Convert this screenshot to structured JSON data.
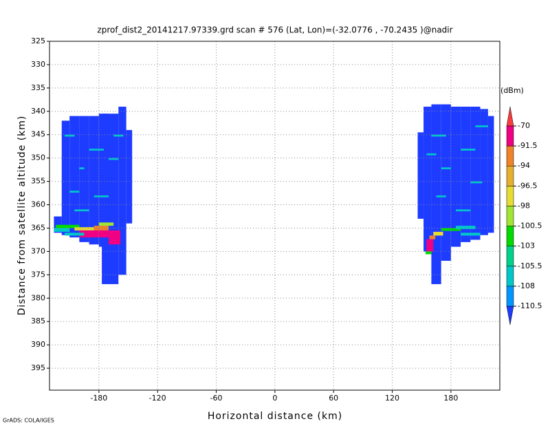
{
  "chart_data": {
    "type": "heatmap",
    "title": "zprof_dist2_20141217.97339.grd  scan # 576  (Lat, Lon)=(-32.0776 , -70.2435 )@nadir",
    "x_label": "Horizontal distance (km)",
    "y_label": "Distance from satellite altitude (km)",
    "footer": "GrADS: COLA/IGES",
    "xlim": [
      -230.5,
      230
    ],
    "ylim": [
      325,
      399.7
    ],
    "y_inverted": true,
    "xticks": [
      -180,
      -120,
      -60,
      0,
      60,
      120,
      180
    ],
    "yticks": [
      325,
      330,
      335,
      340,
      345,
      350,
      355,
      360,
      365,
      370,
      375,
      380,
      385,
      390,
      395
    ],
    "grid": true,
    "colorbar": {
      "unit": "(dBm)",
      "levels": [
        -110.5,
        -108,
        -105.5,
        -103,
        -100.5,
        -98,
        -96.5,
        -94,
        -91.5,
        -70
      ],
      "colors": [
        "#1e3cff",
        "#0096ff",
        "#00c8c8",
        "#00d28c",
        "#00dc00",
        "#a0e632",
        "#e6dc32",
        "#e6af2d",
        "#f08228",
        "#f00082",
        "#fa3c3c"
      ]
    },
    "cells": [
      {
        "x": [
          -226,
          -218
        ],
        "y": [
          362.5,
          366
        ],
        "value": -112
      },
      {
        "x": [
          -218,
          -210
        ],
        "y": [
          342,
          366.5
        ],
        "value": -112
      },
      {
        "x": [
          -210,
          -200
        ],
        "y": [
          341,
          367
        ],
        "value": -112
      },
      {
        "x": [
          -200,
          -190
        ],
        "y": [
          341,
          368
        ],
        "value": -112
      },
      {
        "x": [
          -190,
          -180
        ],
        "y": [
          341,
          368.5
        ],
        "value": -112
      },
      {
        "x": [
          -180,
          -170
        ],
        "y": [
          340.5,
          369
        ],
        "value": -112
      },
      {
        "x": [
          -177,
          -160
        ],
        "y": [
          340.5,
          377
        ],
        "value": -112
      },
      {
        "x": [
          -160,
          -152
        ],
        "y": [
          339,
          375
        ],
        "value": -112
      },
      {
        "x": [
          -152,
          -146
        ],
        "y": [
          344,
          364
        ],
        "value": -112
      },
      {
        "x": [
          -215,
          -205
        ],
        "y": [
          345,
          345.4
        ],
        "value": -107
      },
      {
        "x": [
          -190,
          -175
        ],
        "y": [
          348,
          348.4
        ],
        "value": -107
      },
      {
        "x": [
          -200,
          -195
        ],
        "y": [
          352,
          352.4
        ],
        "value": -107
      },
      {
        "x": [
          -170,
          -160
        ],
        "y": [
          350,
          350.4
        ],
        "value": -107
      },
      {
        "x": [
          -210,
          -200
        ],
        "y": [
          357,
          357.4
        ],
        "value": -107
      },
      {
        "x": [
          -185,
          -170
        ],
        "y": [
          358,
          358.4
        ],
        "value": -107
      },
      {
        "x": [
          -165,
          -155
        ],
        "y": [
          345,
          345.4
        ],
        "value": -107
      },
      {
        "x": [
          -205,
          -190
        ],
        "y": [
          361,
          361.4
        ],
        "value": -107
      },
      {
        "x": [
          -224,
          -200
        ],
        "y": [
          364.3,
          365
        ],
        "value": -102
      },
      {
        "x": [
          -226,
          -210
        ],
        "y": [
          365,
          365.8
        ],
        "value": -106
      },
      {
        "x": [
          -205,
          -185
        ],
        "y": [
          364.8,
          365.5
        ],
        "value": -97
      },
      {
        "x": [
          -185,
          -170
        ],
        "y": [
          364.5,
          365.5
        ],
        "value": -93
      },
      {
        "x": [
          -200,
          -158
        ],
        "y": [
          365.5,
          367
        ],
        "value": -80
      },
      {
        "x": [
          -170,
          -158
        ],
        "y": [
          367,
          368.5
        ],
        "value": -80
      },
      {
        "x": [
          -180,
          -165
        ],
        "y": [
          363.8,
          364.5
        ],
        "value": -99
      },
      {
        "x": [
          -215,
          -195
        ],
        "y": [
          366,
          366.6
        ],
        "value": -106
      },
      {
        "x": [
          146,
          152
        ],
        "y": [
          344.5,
          363
        ],
        "value": -112
      },
      {
        "x": [
          152,
          160
        ],
        "y": [
          339,
          370
        ],
        "value": -112
      },
      {
        "x": [
          160,
          170
        ],
        "y": [
          338.5,
          377
        ],
        "value": -112
      },
      {
        "x": [
          170,
          180
        ],
        "y": [
          338.5,
          372
        ],
        "value": -112
      },
      {
        "x": [
          180,
          190
        ],
        "y": [
          339,
          369
        ],
        "value": -112
      },
      {
        "x": [
          190,
          200
        ],
        "y": [
          339,
          368
        ],
        "value": -112
      },
      {
        "x": [
          200,
          210
        ],
        "y": [
          339,
          367.5
        ],
        "value": -112
      },
      {
        "x": [
          210,
          218
        ],
        "y": [
          339.5,
          366.5
        ],
        "value": -112
      },
      {
        "x": [
          218,
          224
        ],
        "y": [
          341,
          366
        ],
        "value": -112
      },
      {
        "x": [
          160,
          175
        ],
        "y": [
          345,
          345.4
        ],
        "value": -107
      },
      {
        "x": [
          190,
          205
        ],
        "y": [
          348,
          348.4
        ],
        "value": -107
      },
      {
        "x": [
          170,
          180
        ],
        "y": [
          352,
          352.4
        ],
        "value": -107
      },
      {
        "x": [
          200,
          212
        ],
        "y": [
          355,
          355.4
        ],
        "value": -107
      },
      {
        "x": [
          165,
          175
        ],
        "y": [
          358,
          358.4
        ],
        "value": -107
      },
      {
        "x": [
          185,
          200
        ],
        "y": [
          361,
          361.4
        ],
        "value": -107
      },
      {
        "x": [
          155,
          165
        ],
        "y": [
          349,
          349.4
        ],
        "value": -107
      },
      {
        "x": [
          205,
          218
        ],
        "y": [
          343,
          343.4
        ],
        "value": -107
      },
      {
        "x": [
          170,
          190
        ],
        "y": [
          365,
          365.6
        ],
        "value": -102
      },
      {
        "x": [
          185,
          205
        ],
        "y": [
          364.5,
          365.2
        ],
        "value": -106
      },
      {
        "x": [
          162,
          172
        ],
        "y": [
          365.8,
          366.6
        ],
        "value": -97
      },
      {
        "x": [
          158,
          164
        ],
        "y": [
          366.6,
          367.4
        ],
        "value": -93
      },
      {
        "x": [
          155,
          162
        ],
        "y": [
          367.4,
          370
        ],
        "value": -80
      },
      {
        "x": [
          154,
          160
        ],
        "y": [
          370,
          370.6
        ],
        "value": -102
      },
      {
        "x": [
          190,
          210
        ],
        "y": [
          366,
          366.6
        ],
        "value": -106
      }
    ]
  }
}
